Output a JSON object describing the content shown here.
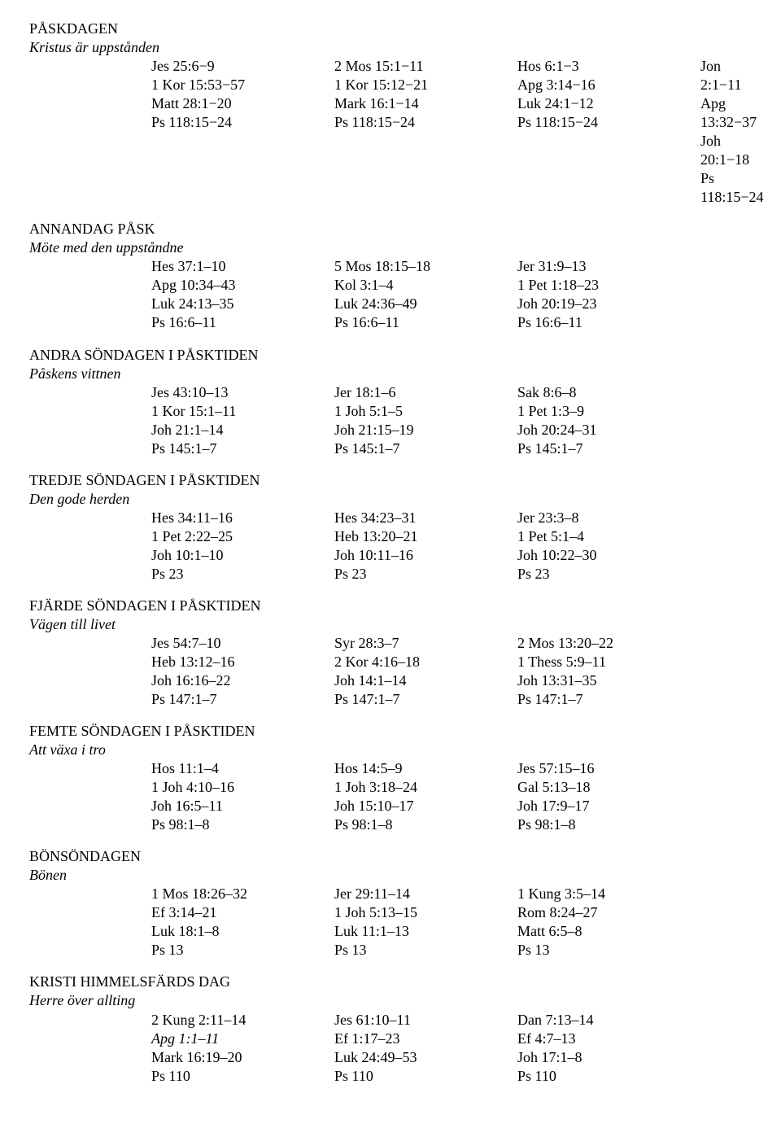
{
  "sections": [
    {
      "title": "PÅSKDAGEN",
      "subtitle": "Kristus är uppstånden",
      "columns": 4,
      "rows": [
        [
          "Jes 25:6−9",
          "2 Mos 15:1−11",
          "Hos 6:1−3",
          "Jon 2:1−11"
        ],
        [
          "1 Kor 15:53−57",
          "1 Kor 15:12−21",
          "Apg 3:14−16",
          "Apg 13:32−37"
        ],
        [
          "Matt 28:1−20",
          "Mark 16:1−14",
          "Luk 24:1−12",
          "Joh 20:1−18"
        ],
        [
          "Ps 118:15−24",
          "Ps 118:15−24",
          "Ps 118:15−24",
          "Ps 118:15−24"
        ]
      ]
    },
    {
      "title": "ANNANDAG PÅSK",
      "subtitle": "Möte med den uppståndne",
      "columns": 3,
      "rows": [
        [
          "Hes 37:1–10",
          "5 Mos 18:15–18",
          "Jer 31:9–13"
        ],
        [
          "Apg 10:34–43",
          "Kol 3:1–4",
          "1 Pet 1:18–23"
        ],
        [
          "Luk 24:13–35",
          "Luk 24:36–49",
          "Joh 20:19–23"
        ],
        [
          "Ps 16:6–11",
          "Ps 16:6–11",
          "Ps 16:6–11"
        ]
      ]
    },
    {
      "title": "ANDRA SÖNDAGEN I PÅSKTIDEN",
      "subtitle": "Påskens vittnen",
      "columns": 3,
      "rows": [
        [
          "Jes 43:10–13",
          "Jer 18:1–6",
          "Sak 8:6–8"
        ],
        [
          "1 Kor 15:1–11",
          "1 Joh 5:1–5",
          "1 Pet 1:3–9"
        ],
        [
          "Joh 21:1–14",
          "Joh 21:15–19",
          "Joh 20:24–31"
        ],
        [
          "Ps 145:1–7",
          "Ps 145:1–7",
          "Ps 145:1–7"
        ]
      ]
    },
    {
      "title": "TREDJE SÖNDAGEN I PÅSKTIDEN",
      "subtitle": "Den gode herden",
      "columns": 3,
      "rows": [
        [
          "Hes 34:11–16",
          "Hes 34:23–31",
          "Jer 23:3–8"
        ],
        [
          "1 Pet 2:22–25",
          "Heb 13:20–21",
          "1 Pet 5:1–4"
        ],
        [
          "Joh 10:1–10",
          "Joh 10:11–16",
          "Joh 10:22–30"
        ],
        [
          "Ps 23",
          "Ps 23",
          "Ps 23"
        ]
      ]
    },
    {
      "title": "FJÄRDE SÖNDAGEN I PÅSKTIDEN",
      "subtitle": "Vägen till livet",
      "columns": 3,
      "rows": [
        [
          "Jes 54:7–10",
          "Syr 28:3–7",
          "2 Mos 13:20–22"
        ],
        [
          "Heb 13:12–16",
          "2 Kor 4:16–18",
          "1 Thess 5:9–11"
        ],
        [
          "Joh 16:16–22",
          "Joh 14:1–14",
          "Joh 13:31–35"
        ],
        [
          "Ps 147:1–7",
          "Ps 147:1–7",
          "Ps 147:1–7"
        ]
      ]
    },
    {
      "title": "FEMTE SÖNDAGEN I PÅSKTIDEN",
      "subtitle": "Att växa i tro",
      "columns": 3,
      "rows": [
        [
          "Hos 11:1–4",
          "Hos 14:5–9",
          "Jes 57:15–16"
        ],
        [
          "1 Joh 4:10–16",
          "1 Joh 3:18–24",
          "Gal 5:13–18"
        ],
        [
          "Joh 16:5–11",
          "Joh 15:10–17",
          "Joh 17:9–17"
        ],
        [
          "Ps 98:1–8",
          "Ps 98:1–8",
          "Ps 98:1–8"
        ]
      ]
    },
    {
      "title": "BÖNSÖNDAGEN",
      "subtitle": "Bönen",
      "columns": 3,
      "rows": [
        [
          "1 Mos 18:26–32",
          "Jer 29:11–14",
          "1 Kung 3:5–14"
        ],
        [
          "Ef 3:14–21",
          "1 Joh 5:13–15",
          "Rom 8:24–27"
        ],
        [
          "Luk 18:1–8",
          "Luk 11:1–13",
          "Matt 6:5–8"
        ],
        [
          "Ps 13",
          "Ps 13",
          "Ps 13"
        ]
      ]
    },
    {
      "title": "KRISTI HIMMELSFÄRDS DAG",
      "subtitle": "Herre över allting",
      "columns": 3,
      "rows": [
        [
          "2 Kung 2:11–14",
          "Jes 61:10–11",
          "Dan 7:13–14"
        ],
        [
          {
            "text": "Apg 1:1–11",
            "italic": true
          },
          "Ef 1:17–23",
          "Ef 4:7–13"
        ],
        [
          "Mark 16:19–20",
          "Luk 24:49–53",
          "Joh 17:1–8"
        ],
        [
          "Ps 110",
          "Ps 110",
          "Ps 110"
        ]
      ]
    }
  ]
}
